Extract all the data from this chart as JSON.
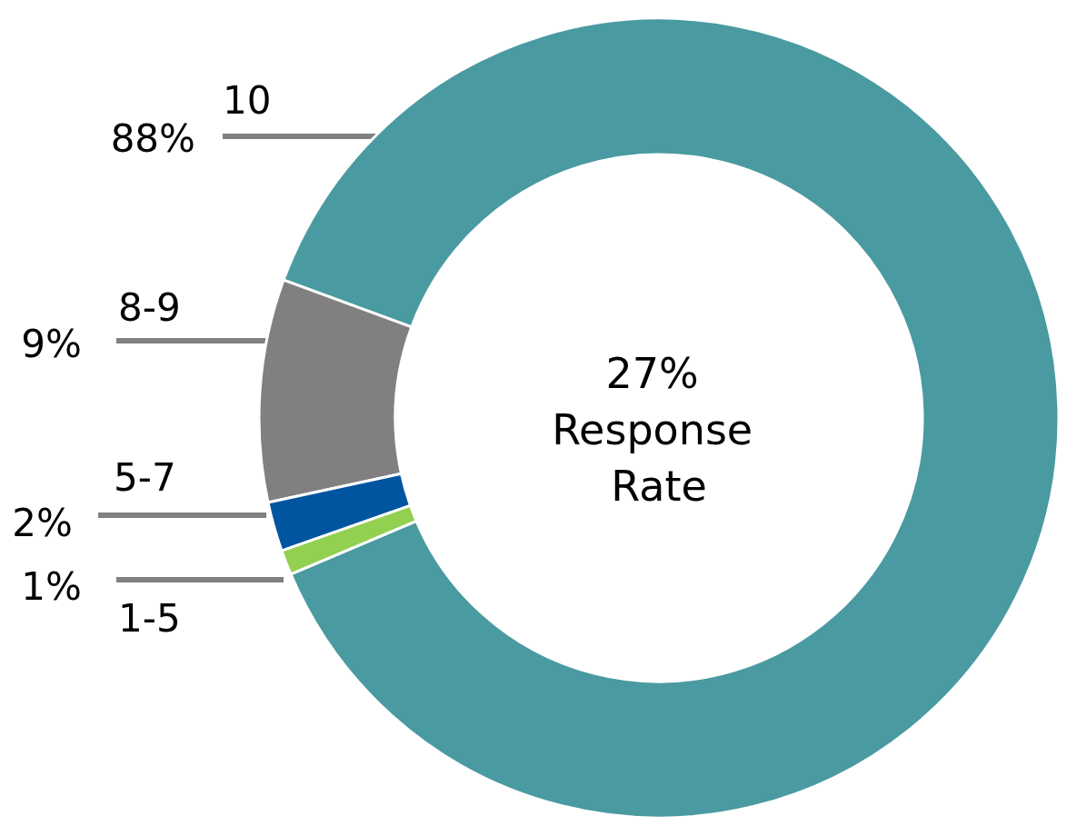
{
  "chart_data": {
    "type": "donut",
    "categories": [
      "10",
      "8-9",
      "5-7",
      "1-5"
    ],
    "values": [
      88,
      9,
      2,
      1
    ],
    "value_labels": [
      "88%",
      "9%",
      "2%",
      "1%"
    ],
    "colors": [
      "#4a9aa1",
      "#808080",
      "#0055a0",
      "#92d050"
    ],
    "annotations": [
      "27% Response Rate"
    ],
    "legend": false
  }
}
